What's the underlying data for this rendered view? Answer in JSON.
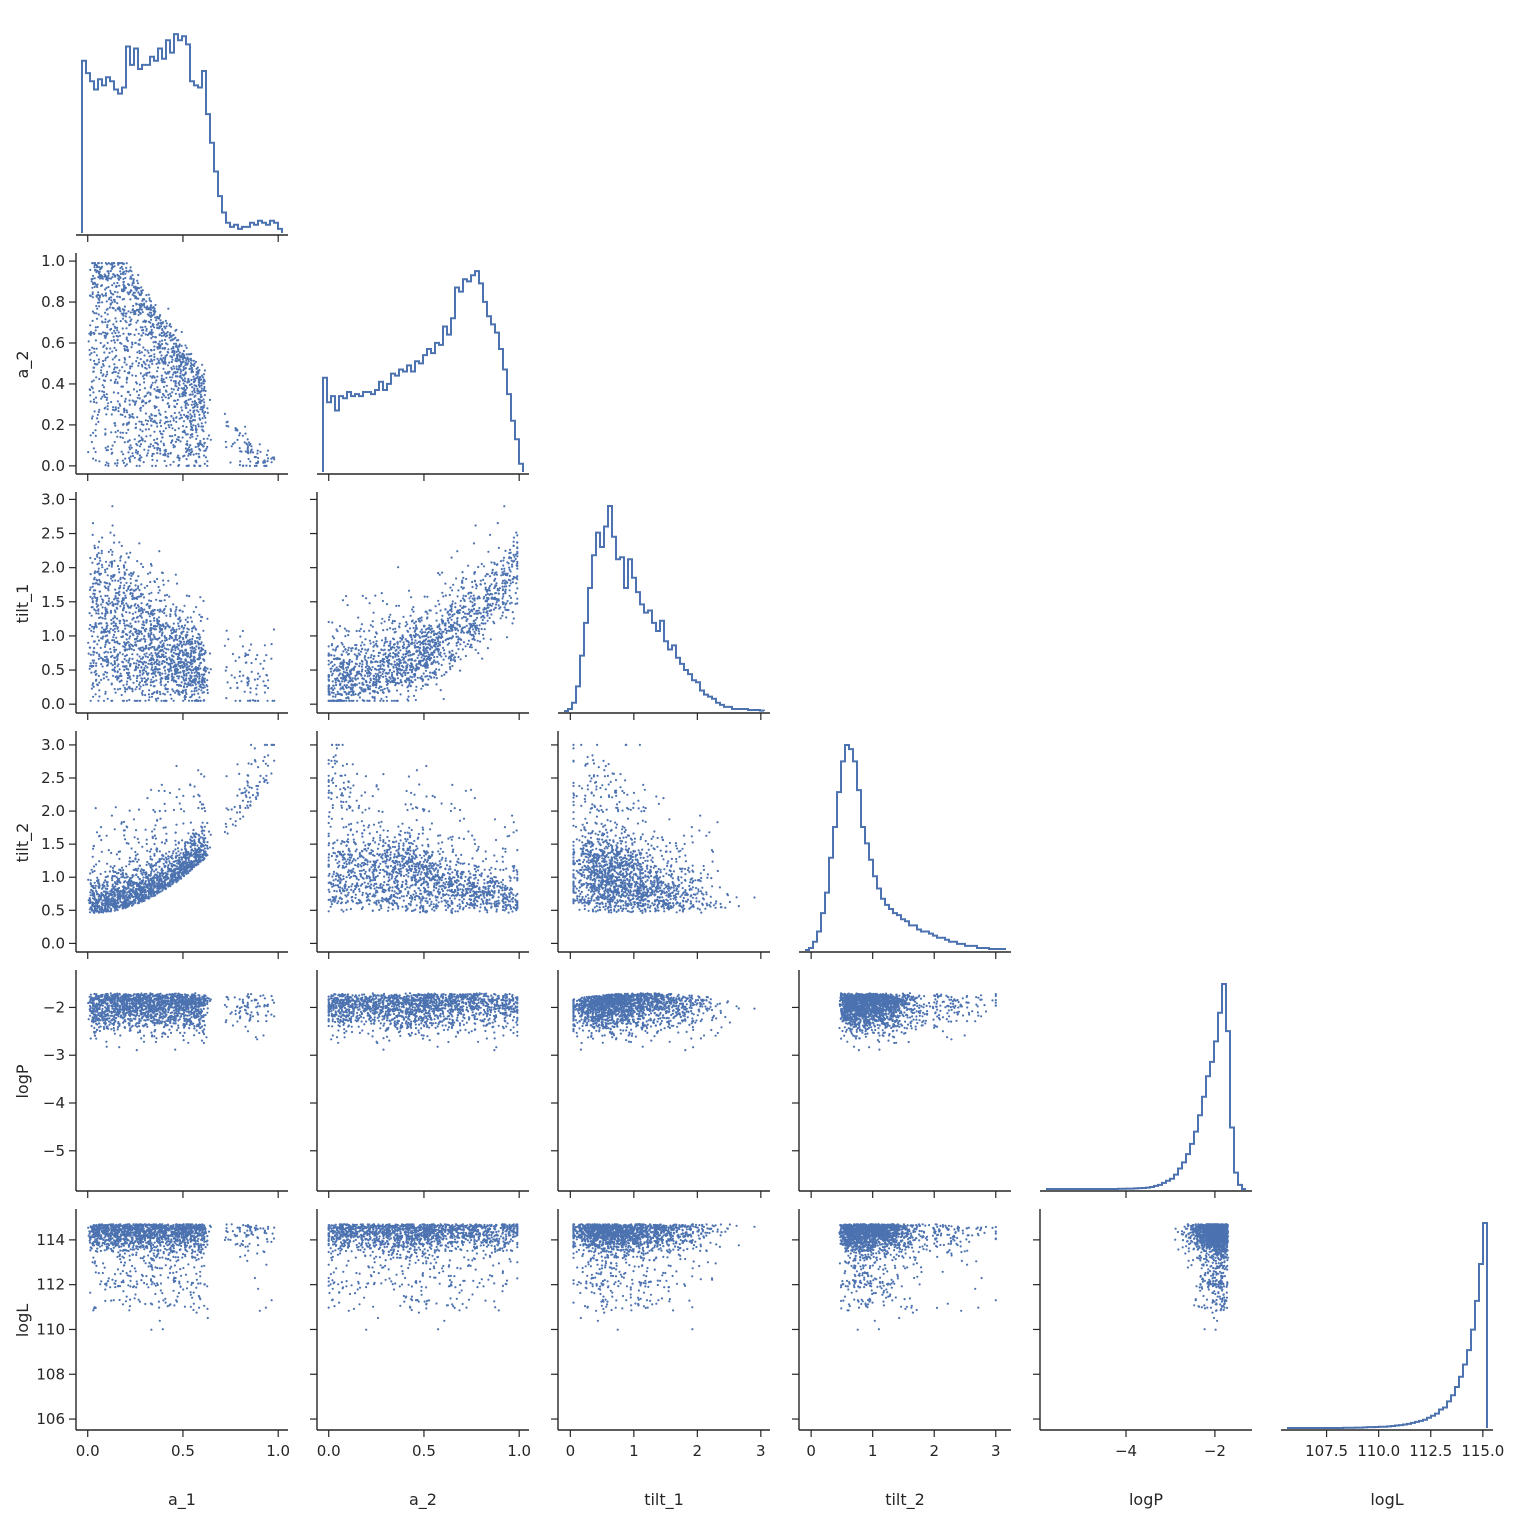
{
  "chart_data": {
    "type": "scatter",
    "layout": "corner-pairplot",
    "title": "",
    "series_color": "#4c72b0",
    "diagonal": "step-histogram",
    "off_diagonal": "scatter",
    "variables": [
      {
        "name": "a_1",
        "range": [
          -0.03,
          1.02
        ],
        "ticks": [
          "0.0",
          "0.5",
          "1.0"
        ],
        "tick_values": [
          0,
          0.5,
          1.0
        ]
      },
      {
        "name": "a_2",
        "range": [
          -0.03,
          1.02
        ],
        "ticks": [
          "0.0",
          "0.2",
          "0.4",
          "0.6",
          "0.8",
          "1.0"
        ],
        "tick_values": [
          0,
          0.2,
          0.4,
          0.6,
          0.8,
          1.0
        ],
        "xticks": [
          "0.0",
          "0.5",
          "1.0"
        ],
        "xtick_values": [
          0,
          0.5,
          1.0
        ]
      },
      {
        "name": "tilt_1",
        "range": [
          -0.1,
          3.05
        ],
        "ticks": [
          "0.0",
          "0.5",
          "1.0",
          "1.5",
          "2.0",
          "2.5",
          "3.0"
        ],
        "tick_values": [
          0,
          0.5,
          1.0,
          1.5,
          2.0,
          2.5,
          3.0
        ],
        "xticks": [
          "0",
          "1",
          "2",
          "3"
        ],
        "xtick_values": [
          0,
          1,
          2,
          3
        ]
      },
      {
        "name": "tilt_2",
        "range": [
          -0.1,
          3.15
        ],
        "ticks": [
          "0.0",
          "0.5",
          "1.0",
          "1.5",
          "2.0",
          "2.5",
          "3.0"
        ],
        "tick_values": [
          0,
          0.5,
          1.0,
          1.5,
          2.0,
          2.5,
          3.0
        ],
        "xticks": [
          "0",
          "1",
          "2",
          "3"
        ],
        "xtick_values": [
          0,
          1,
          2,
          3
        ]
      },
      {
        "name": "logP",
        "range": [
          -5.8,
          -1.3
        ],
        "ticks": [
          "−5",
          "−4",
          "−3",
          "−2"
        ],
        "tick_values": [
          -5,
          -4,
          -3,
          -2
        ],
        "xticks": [
          "−4",
          "−2"
        ],
        "xtick_values": [
          -4,
          -2
        ]
      },
      {
        "name": "logL",
        "range": [
          105.6,
          115.2
        ],
        "ticks": [
          "106",
          "108",
          "110",
          "112",
          "114"
        ],
        "tick_values": [
          106,
          108,
          110,
          112,
          114
        ],
        "xticks": [
          "107.5",
          "110.0",
          "112.5",
          "115.0"
        ],
        "xtick_values": [
          107.5,
          110.0,
          112.5,
          115.0
        ]
      }
    ],
    "histograms": {
      "a_1": [
        0.84,
        0.78,
        0.74,
        0.7,
        0.75,
        0.72,
        0.76,
        0.74,
        0.7,
        0.68,
        0.71,
        0.91,
        0.82,
        0.9,
        0.8,
        0.82,
        0.82,
        0.86,
        0.84,
        0.9,
        0.85,
        0.94,
        0.88,
        0.97,
        0.94,
        0.96,
        0.92,
        0.74,
        0.72,
        0.71,
        0.79,
        0.58,
        0.44,
        0.3,
        0.18,
        0.1,
        0.05,
        0.03,
        0.04,
        0.02,
        0.03,
        0.03,
        0.05,
        0.04,
        0.06,
        0.05,
        0.04,
        0.06,
        0.05,
        0.02
      ],
      "a_2": [
        0.46,
        0.34,
        0.37,
        0.3,
        0.37,
        0.36,
        0.39,
        0.37,
        0.38,
        0.37,
        0.39,
        0.39,
        0.38,
        0.4,
        0.44,
        0.4,
        0.43,
        0.48,
        0.47,
        0.5,
        0.49,
        0.52,
        0.49,
        0.54,
        0.53,
        0.57,
        0.6,
        0.58,
        0.63,
        0.62,
        0.71,
        0.67,
        0.75,
        0.9,
        0.88,
        0.94,
        0.93,
        0.96,
        0.98,
        0.92,
        0.83,
        0.76,
        0.72,
        0.68,
        0.6,
        0.5,
        0.38,
        0.25,
        0.16,
        0.04
      ],
      "tilt_1": [
        0.0,
        0.01,
        0.04,
        0.12,
        0.27,
        0.43,
        0.6,
        0.76,
        0.87,
        0.8,
        0.9,
        1.0,
        0.85,
        0.74,
        0.75,
        0.6,
        0.74,
        0.65,
        0.58,
        0.52,
        0.48,
        0.49,
        0.43,
        0.39,
        0.44,
        0.34,
        0.3,
        0.32,
        0.26,
        0.23,
        0.2,
        0.18,
        0.15,
        0.14,
        0.1,
        0.08,
        0.07,
        0.06,
        0.04,
        0.03,
        0.02,
        0.02,
        0.01,
        0.01,
        0.01,
        0.01,
        0.005,
        0.005,
        0.005,
        0.002
      ],
      "tilt_2": [
        0.0,
        0.01,
        0.04,
        0.09,
        0.18,
        0.28,
        0.45,
        0.6,
        0.77,
        0.92,
        1.0,
        0.98,
        0.92,
        0.78,
        0.6,
        0.52,
        0.44,
        0.36,
        0.3,
        0.25,
        0.22,
        0.2,
        0.18,
        0.17,
        0.15,
        0.14,
        0.12,
        0.12,
        0.1,
        0.09,
        0.09,
        0.08,
        0.07,
        0.06,
        0.06,
        0.05,
        0.04,
        0.04,
        0.03,
        0.03,
        0.02,
        0.02,
        0.02,
        0.01,
        0.01,
        0.01,
        0.005,
        0.005,
        0.005,
        0.005
      ],
      "logP": [
        0.0,
        0.0,
        0.0,
        0.0,
        0.0,
        0.0,
        0.0,
        0.0,
        0.0,
        0.0,
        0.0,
        0.0,
        0.0,
        0.0,
        0.0,
        0.0,
        0.0,
        0.0,
        0.001,
        0.001,
        0.002,
        0.002,
        0.003,
        0.004,
        0.005,
        0.007,
        0.01,
        0.015,
        0.02,
        0.03,
        0.04,
        0.05,
        0.07,
        0.1,
        0.13,
        0.17,
        0.22,
        0.28,
        0.36,
        0.45,
        0.55,
        0.62,
        0.72,
        0.86,
        1.0,
        0.77,
        0.3,
        0.08,
        0.02,
        0.0
      ],
      "logL": [
        0.0,
        0.0,
        0.0,
        0.0,
        0.0,
        0.0,
        0.0,
        0.0,
        0.0,
        0.0,
        0.0,
        0.0,
        0.0,
        0.0,
        0.001,
        0.001,
        0.001,
        0.002,
        0.002,
        0.003,
        0.004,
        0.004,
        0.005,
        0.006,
        0.006,
        0.008,
        0.01,
        0.012,
        0.014,
        0.017,
        0.02,
        0.025,
        0.03,
        0.035,
        0.04,
        0.05,
        0.06,
        0.07,
        0.09,
        0.1,
        0.13,
        0.16,
        0.2,
        0.25,
        0.31,
        0.38,
        0.48,
        0.62,
        0.8,
        1.0
      ]
    }
  }
}
